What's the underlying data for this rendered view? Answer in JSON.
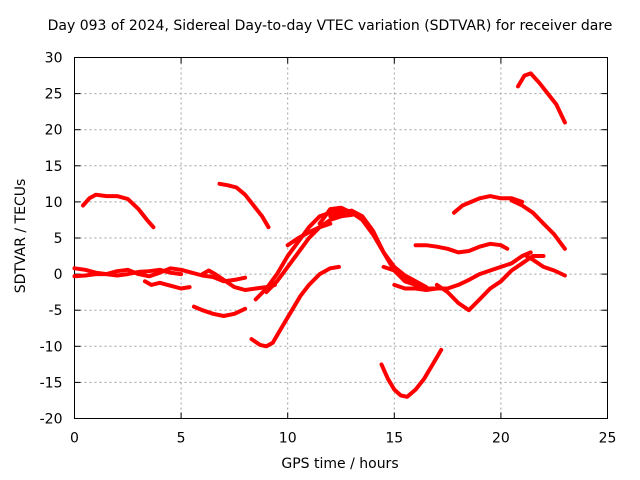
{
  "chart_data": {
    "type": "line",
    "title": "Day 093 of 2024, Sidereal Day-to-day VTEC variation (SDTVAR) for receiver dare",
    "xlabel": "GPS time / hours",
    "ylabel": "SDTVAR / TECUs",
    "xlim": [
      0,
      25
    ],
    "ylim": [
      -20,
      30
    ],
    "xticks": [
      0,
      5,
      10,
      15,
      20,
      25
    ],
    "yticks": [
      -20,
      -15,
      -10,
      -5,
      0,
      5,
      10,
      15,
      20,
      25,
      30
    ],
    "grid": true,
    "color": "#ff0000",
    "series": [
      {
        "name": "track-1",
        "x": [
          0.4,
          0.7,
          1.0,
          1.5,
          2.0,
          2.5,
          3.0,
          3.4,
          3.7
        ],
        "y": [
          9.5,
          10.5,
          11.0,
          10.8,
          10.8,
          10.4,
          9.0,
          7.5,
          6.5
        ]
      },
      {
        "name": "track-2",
        "x": [
          0,
          0.5,
          1.0,
          1.5,
          2.0,
          2.5,
          3.0,
          3.5,
          4.0,
          4.5,
          5.0
        ],
        "y": [
          0.8,
          0.6,
          0.2,
          0.0,
          -0.2,
          0.0,
          0.3,
          0.4,
          0.6,
          0.2,
          0.0
        ]
      },
      {
        "name": "track-3",
        "x": [
          0,
          0.5,
          1.0,
          1.5,
          2.0,
          2.5,
          3.0,
          3.5,
          4.0,
          4.5,
          5.0,
          5.5,
          6.0,
          6.5,
          7.0,
          7.5,
          8.0
        ],
        "y": [
          -0.3,
          -0.2,
          0.0,
          0.0,
          0.4,
          0.6,
          0.0,
          -0.3,
          0.2,
          0.8,
          0.6,
          0.2,
          -0.2,
          -0.4,
          -1.0,
          -0.8,
          -0.5
        ]
      },
      {
        "name": "track-4",
        "x": [
          3.3,
          3.6,
          4.0,
          4.5,
          5.0,
          5.4
        ],
        "y": [
          -1.0,
          -1.5,
          -1.2,
          -1.6,
          -2.0,
          -1.8
        ]
      },
      {
        "name": "track-5",
        "x": [
          5.6,
          6.0,
          6.5,
          7.0,
          7.5,
          8.0
        ],
        "y": [
          -4.5,
          -5.0,
          -5.5,
          -5.8,
          -5.5,
          -4.8
        ]
      },
      {
        "name": "track-6",
        "x": [
          6.0,
          6.3,
          6.6,
          7.0,
          7.5,
          8.0,
          8.5,
          9.0,
          9.4
        ],
        "y": [
          0.0,
          0.5,
          0.0,
          -0.8,
          -1.8,
          -2.2,
          -2.0,
          -1.8,
          -1.5
        ]
      },
      {
        "name": "track-7",
        "x": [
          6.8,
          7.2,
          7.6,
          8.0,
          8.4,
          8.8,
          9.1
        ],
        "y": [
          12.5,
          12.3,
          12.0,
          11.0,
          9.5,
          8.0,
          6.5
        ]
      },
      {
        "name": "track-8",
        "x": [
          8.3,
          8.7,
          9.0,
          9.3,
          9.5,
          9.8,
          10.2,
          10.6,
          11.0,
          11.5,
          12.0,
          12.4
        ],
        "y": [
          -9.0,
          -9.8,
          -10.0,
          -9.5,
          -8.5,
          -7.0,
          -5.0,
          -3.0,
          -1.5,
          0.0,
          0.8,
          1.0
        ]
      },
      {
        "name": "track-9",
        "x": [
          8.5,
          9.0,
          9.5,
          10.0,
          10.5,
          11.0,
          11.5,
          12.0,
          12.5
        ],
        "y": [
          -3.5,
          -2.0,
          0.0,
          2.5,
          4.5,
          6.5,
          8.0,
          8.5,
          9.0
        ]
      },
      {
        "name": "track-10",
        "x": [
          9.0,
          9.5,
          10.0,
          10.5,
          11.0,
          11.5,
          12.0,
          12.5,
          13.0
        ],
        "y": [
          -2.5,
          -1.0,
          1.0,
          3.0,
          5.0,
          6.5,
          7.5,
          8.0,
          8.2
        ]
      },
      {
        "name": "track-11",
        "x": [
          10.0,
          10.5,
          11.0,
          11.5,
          12.0
        ],
        "y": [
          4.0,
          5.0,
          5.8,
          6.5,
          7.0
        ]
      },
      {
        "name": "track-12",
        "x": [
          11.5,
          12.0,
          12.5,
          13.0,
          13.5,
          14.0,
          14.5,
          15.0,
          15.5,
          16.0,
          16.5,
          17.0
        ],
        "y": [
          7.0,
          9.0,
          9.2,
          8.5,
          7.5,
          5.5,
          3.0,
          0.5,
          -1.0,
          -1.5,
          -2.0,
          -2.0
        ]
      },
      {
        "name": "track-13",
        "x": [
          12.0,
          12.5,
          13.0,
          13.5,
          14.0,
          14.5,
          15.0,
          15.5,
          16.0,
          16.5
        ],
        "y": [
          8.0,
          8.5,
          8.8,
          8.0,
          6.0,
          3.0,
          1.0,
          -0.2,
          -1.0,
          -1.8
        ]
      },
      {
        "name": "track-14",
        "x": [
          14.5,
          15.0,
          15.5,
          16.0,
          16.5,
          17.0
        ],
        "y": [
          1.0,
          0.5,
          -0.5,
          -1.5,
          -2.0,
          -2.0
        ]
      },
      {
        "name": "track-15",
        "x": [
          14.4,
          14.7,
          15.0,
          15.3,
          15.6,
          16.0,
          16.4,
          16.8,
          17.2
        ],
        "y": [
          -12.5,
          -14.5,
          -16.0,
          -16.8,
          -17.0,
          -16.0,
          -14.5,
          -12.5,
          -10.5
        ]
      },
      {
        "name": "track-16",
        "x": [
          15.0,
          15.5,
          16.0,
          16.5,
          17.0,
          17.5,
          18.0,
          18.5,
          19.0,
          19.5,
          20.0,
          20.5,
          21.0,
          21.4
        ],
        "y": [
          -1.5,
          -2.0,
          -2.0,
          -2.2,
          -2.0,
          -2.0,
          -1.5,
          -0.8,
          0.0,
          0.5,
          1.0,
          1.5,
          2.5,
          3.0
        ]
      },
      {
        "name": "track-17",
        "x": [
          16.0,
          16.5,
          17.0,
          17.5,
          18.0,
          18.5,
          19.0,
          19.5,
          20.0,
          20.3
        ],
        "y": [
          4.0,
          4.0,
          3.8,
          3.5,
          3.0,
          3.2,
          3.8,
          4.2,
          4.0,
          3.5
        ]
      },
      {
        "name": "track-18",
        "x": [
          17.0,
          17.5,
          18.0,
          18.5,
          19.0,
          19.5,
          20.0,
          20.5,
          21.0,
          21.5,
          22.0
        ],
        "y": [
          -1.5,
          -2.5,
          -4.0,
          -5.0,
          -3.5,
          -2.0,
          -1.0,
          0.5,
          1.5,
          2.5,
          2.5
        ]
      },
      {
        "name": "track-19",
        "x": [
          17.8,
          18.2,
          18.6,
          19.0,
          19.5,
          20.0,
          20.5,
          21.0
        ],
        "y": [
          8.5,
          9.5,
          10.0,
          10.5,
          10.8,
          10.5,
          10.5,
          10.0
        ]
      },
      {
        "name": "track-20",
        "x": [
          20.5,
          21.0,
          21.5,
          22.0,
          22.5,
          23.0
        ],
        "y": [
          10.2,
          9.5,
          8.5,
          7.0,
          5.5,
          3.5
        ]
      },
      {
        "name": "track-21",
        "x": [
          21.2,
          21.5,
          22.0,
          22.5,
          23.0
        ],
        "y": [
          2.5,
          2.0,
          1.0,
          0.5,
          -0.2
        ]
      },
      {
        "name": "track-22",
        "x": [
          20.8,
          21.1,
          21.4,
          21.8,
          22.2,
          22.6,
          23.0
        ],
        "y": [
          26.0,
          27.5,
          27.8,
          26.5,
          25.0,
          23.5,
          21.0
        ]
      }
    ]
  }
}
